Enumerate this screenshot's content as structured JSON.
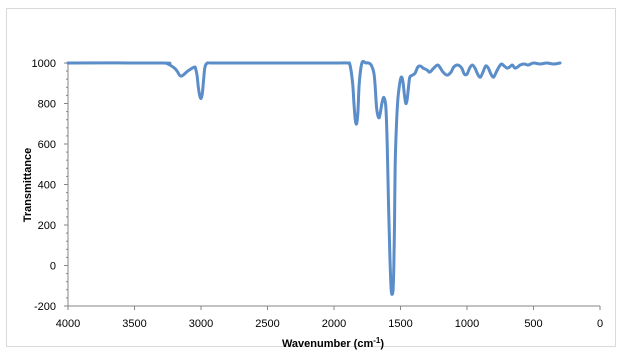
{
  "chart_data": {
    "type": "line",
    "xlabel": "Wavenumber (cm-1)",
    "xlabel_main": "Wavenumber (cm",
    "xlabel_sup": "-1",
    "xlabel_close": ")",
    "ylabel": "Transmittance",
    "xlim": [
      4000,
      0
    ],
    "x_reversed": true,
    "ylim": [
      -200,
      1000
    ],
    "x_ticks": [
      "4000",
      "3500",
      "3000",
      "2500",
      "2000",
      "1500",
      "1000",
      "500",
      "0"
    ],
    "y_ticks": [
      "1000",
      "800",
      "600",
      "400",
      "200",
      "0",
      "-200"
    ],
    "grid": false,
    "legend": "none",
    "line_color": "#5B8DC9",
    "series": [
      {
        "x": [
          4000,
          3300,
          3250,
          3200,
          3180,
          3150,
          3100,
          3050,
          3040,
          3030,
          3020,
          3010,
          3000,
          2990,
          2980,
          2970,
          2950,
          2900,
          2500,
          2000,
          1900,
          1880,
          1860,
          1850,
          1840,
          1830,
          1820,
          1810,
          1790,
          1760,
          1740,
          1720,
          1700,
          1690,
          1680,
          1670,
          1660,
          1650,
          1640,
          1625,
          1610,
          1600,
          1590,
          1580,
          1570,
          1560,
          1555,
          1550,
          1545,
          1540,
          1530,
          1520,
          1510,
          1500,
          1490,
          1480,
          1470,
          1460,
          1450,
          1440,
          1430,
          1410,
          1390,
          1370,
          1350,
          1330,
          1300,
          1280,
          1250,
          1220,
          1200,
          1180,
          1150,
          1120,
          1100,
          1070,
          1040,
          1020,
          1000,
          980,
          960,
          940,
          920,
          900,
          880,
          860,
          840,
          820,
          800,
          780,
          760,
          740,
          720,
          700,
          680,
          660,
          640,
          620,
          600,
          570,
          540,
          500,
          450,
          400,
          350,
          300
        ],
        "y": [
          1000,
          1000,
          995,
          975,
          960,
          935,
          960,
          980,
          970,
          940,
          880,
          840,
          825,
          850,
          920,
          980,
          1000,
          1000,
          1000,
          1000,
          1000,
          990,
          900,
          800,
          720,
          700,
          760,
          900,
          1000,
          1000,
          1000,
          990,
          950,
          880,
          780,
          740,
          730,
          760,
          800,
          830,
          780,
          600,
          300,
          50,
          -120,
          -140,
          -110,
          0,
          200,
          500,
          700,
          820,
          880,
          920,
          930,
          900,
          840,
          800,
          820,
          880,
          930,
          940,
          950,
          980,
          985,
          975,
          965,
          955,
          975,
          990,
          975,
          955,
          940,
          955,
          980,
          990,
          975,
          945,
          945,
          975,
          990,
          975,
          945,
          930,
          955,
          985,
          975,
          945,
          930,
          955,
          980,
          995,
          985,
          975,
          980,
          990,
          975,
          980,
          990,
          995,
          990,
          1000,
          995,
          1000,
          995,
          1000
        ]
      }
    ]
  }
}
